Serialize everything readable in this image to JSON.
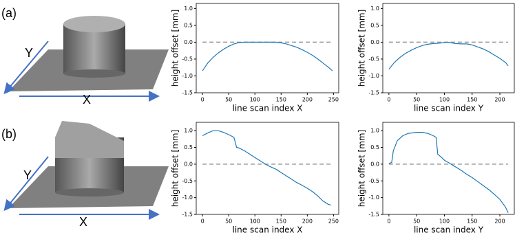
{
  "panels": [
    {
      "label": "(a)",
      "axis_y": "Y",
      "axis_x": "X"
    },
    {
      "label": "(b)",
      "axis_y": "Y",
      "axis_x": "X"
    }
  ],
  "chart_data": [
    {
      "type": "line",
      "xlabel": "line scan index X",
      "ylabel": "height offset [mm]",
      "color": "#1f77b4",
      "reference_line": {
        "y": 0,
        "color": "#999999"
      },
      "x": [
        0,
        10,
        20,
        30,
        40,
        50,
        60,
        70,
        80,
        90,
        100,
        110,
        120,
        130,
        140,
        150,
        160,
        170,
        180,
        190,
        200,
        210,
        220,
        230,
        240,
        248
      ],
      "values": [
        -0.85,
        -0.62,
        -0.45,
        -0.32,
        -0.21,
        -0.12,
        -0.05,
        -0.01,
        0,
        0,
        0,
        0,
        0,
        0,
        0,
        -0.02,
        -0.05,
        -0.1,
        -0.15,
        -0.22,
        -0.3,
        -0.39,
        -0.5,
        -0.62,
        -0.74,
        -0.85
      ],
      "xlim": [
        -12,
        260
      ],
      "ylim": [
        -1.5,
        1.15
      ],
      "xticks": [
        0,
        50,
        100,
        150,
        200,
        250
      ],
      "yticks": [
        {
          "value": 1,
          "label": "1.0"
        },
        0.5,
        {
          "value": 0,
          "label": "0.0"
        },
        -0.5,
        {
          "value": -1,
          "label": "-1.0"
        },
        -1.5
      ]
    },
    {
      "type": "line",
      "xlabel": "line scan index Y",
      "ylabel": "height offset [mm]",
      "color": "#1f77b4",
      "reference_line": {
        "y": 0,
        "color": "#999999"
      },
      "x": [
        0,
        10,
        20,
        30,
        40,
        50,
        60,
        70,
        80,
        90,
        100,
        105,
        110,
        120,
        130,
        140,
        150,
        160,
        170,
        180,
        190,
        200,
        210,
        215
      ],
      "values": [
        -0.8,
        -0.6,
        -0.45,
        -0.33,
        -0.24,
        -0.16,
        -0.1,
        -0.06,
        -0.04,
        -0.03,
        -0.01,
        0,
        -0.01,
        -0.04,
        -0.05,
        -0.05,
        -0.08,
        -0.14,
        -0.2,
        -0.28,
        -0.38,
        -0.48,
        -0.6,
        -0.7
      ],
      "xlim": [
        -11,
        226
      ],
      "ylim": [
        -1.5,
        1.15
      ],
      "xticks": [
        0,
        50,
        100,
        150,
        200
      ],
      "yticks": [
        {
          "value": 1,
          "label": "1.0"
        },
        0.5,
        {
          "value": 0,
          "label": "0.0"
        },
        -0.5,
        {
          "value": -1,
          "label": "-1.0"
        },
        -1.5
      ]
    },
    {
      "type": "line",
      "xlabel": "line scan index X",
      "ylabel": "height offset [mm]",
      "color": "#1f77b4",
      "reference_line": {
        "y": 0,
        "color": "#999999"
      },
      "x": [
        0,
        10,
        20,
        30,
        40,
        50,
        60,
        65,
        70,
        80,
        90,
        100,
        110,
        120,
        130,
        140,
        150,
        160,
        170,
        180,
        190,
        200,
        210,
        220,
        230,
        240,
        245
      ],
      "values": [
        0.85,
        0.93,
        1.0,
        1.0,
        0.95,
        0.88,
        0.8,
        0.5,
        0.48,
        0.4,
        0.3,
        0.2,
        0.1,
        0.0,
        -0.08,
        -0.15,
        -0.25,
        -0.35,
        -0.45,
        -0.55,
        -0.63,
        -0.72,
        -0.82,
        -0.95,
        -1.1,
        -1.2,
        -1.22
      ],
      "xlim": [
        -12,
        260
      ],
      "ylim": [
        -1.5,
        1.25
      ],
      "xticks": [
        0,
        50,
        100,
        150,
        200,
        250
      ],
      "yticks": [
        {
          "value": 1,
          "label": "1.0"
        },
        0.5,
        {
          "value": 0,
          "label": "0.0"
        },
        -0.5,
        {
          "value": -1,
          "label": "-1.0"
        },
        -1.5
      ]
    },
    {
      "type": "line",
      "xlabel": "line scan index Y",
      "ylabel": "height offset [mm]",
      "color": "#1f77b4",
      "reference_line": {
        "y": 0,
        "color": "#999999"
      },
      "x": [
        0,
        5,
        8,
        15,
        25,
        35,
        50,
        60,
        70,
        80,
        85,
        88,
        95,
        100,
        110,
        120,
        130,
        140,
        150,
        160,
        170,
        180,
        190,
        200,
        210,
        215
      ],
      "values": [
        0.02,
        0.05,
        0.4,
        0.7,
        0.85,
        0.92,
        0.95,
        0.95,
        0.92,
        0.85,
        0.8,
        0.3,
        0.2,
        0.12,
        0.02,
        -0.08,
        -0.18,
        -0.3,
        -0.4,
        -0.52,
        -0.64,
        -0.76,
        -0.9,
        -1.05,
        -1.28,
        -1.45
      ],
      "xlim": [
        -11,
        226
      ],
      "ylim": [
        -1.5,
        1.25
      ],
      "xticks": [
        0,
        50,
        100,
        150,
        200
      ],
      "yticks": [
        {
          "value": 1,
          "label": "1.0"
        },
        0.5,
        {
          "value": 0,
          "label": "0.0"
        },
        -0.5,
        {
          "value": -1,
          "label": "-1.0"
        },
        -1.5
      ]
    }
  ]
}
